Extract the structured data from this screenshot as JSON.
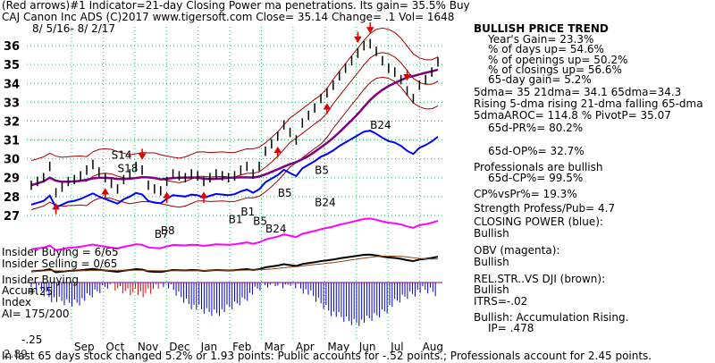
{
  "header": {
    "line1": "(Red arrows)#1 Indicator=21-day Closing Power ma penetrations. Its gain= 35.5% Buy",
    "line2": "CAJ  Canon Inc ADS  (C)2017 www.tigersoft.com    Close=  35.14  Change= .1  Vol= 1648",
    "date_range": "8/ 5/16- 8/ 2/17"
  },
  "colors": {
    "price": "#000000",
    "ma21": "#a00000",
    "ma65": "#800080",
    "closing_power": "#0000ff",
    "obv": "#ff00ff",
    "relative_strength": "#8b4513",
    "accumulation": "#0000c0",
    "distribution": "#d00000",
    "arrows": "#e00000",
    "grid": "#3cb371"
  },
  "chart_data": {
    "type": "line",
    "title": "",
    "ylim": [
      26,
      37
    ],
    "yticks": [
      27,
      28,
      29,
      30,
      31,
      32,
      33,
      34,
      35,
      36
    ],
    "months": [
      "Sep",
      "Oct",
      "Nov",
      "Dec",
      "Jan",
      "Feb",
      "Mar",
      "Apr",
      "May",
      "Jun",
      "Jul",
      "Aug"
    ],
    "price_close": [
      28.6,
      28.8,
      29.0,
      29.6,
      28.2,
      28.5,
      28.8,
      28.9,
      29.1,
      29.4,
      29.7,
      29.3,
      29.0,
      28.7,
      28.4,
      28.9,
      29.2,
      29.6,
      29.4,
      28.6,
      28.4,
      28.3,
      28.8,
      29.2,
      29.1,
      29.0,
      29.2,
      29.1,
      28.8,
      29.0,
      29.2,
      29.1,
      29.0,
      29.1,
      29.4,
      29.6,
      29.2,
      29.6,
      30.4,
      30.8,
      31.2,
      31.8,
      31.4,
      31.0,
      31.9,
      32.3,
      32.7,
      33.2,
      33.5,
      33.9,
      34.4,
      34.8,
      35.2,
      35.6,
      36.0,
      36.1,
      35.7,
      35.2,
      34.8,
      34.6,
      34.2,
      33.6,
      33.2,
      33.9,
      34.2,
      34.6,
      35.14
    ],
    "annotations": [
      "S14",
      "S18",
      "B24",
      "B5",
      "B5",
      "B5",
      "B7",
      "B8",
      "B1",
      "B1",
      "B24",
      "B24"
    ],
    "insider": {
      "buying": "Insider Buying = 6/65",
      "selling": "Insider Selling = 0/65"
    },
    "accum_panel": {
      "label1": "Insider Buying",
      "label2": "Accum",
      "label3": "Index",
      "ai_label": "AI= 175/200",
      "top_tick": "+.25",
      "bottom_tick": "-.25"
    }
  },
  "panel": {
    "trend_title": "BULLISH PRICE TREND",
    "years_gain": "Year's Gain= 23.3%",
    "days_up": "% of days up= 54.6%",
    "openings_up": "% of openings up= 50.2%",
    "closings_up": "% of closings up= 56.6%",
    "gain_65d": "65-day gain= 5.2%",
    "dma": "5dma= 35 21dma= 34.1 65dma=34.3",
    "rising": "Rising 5-dma rising 21-dma falling 65-dma",
    "aroc": "5dmaAROC= 114.8 %  PivotP= 35.07",
    "pr": "65d-PR%= 80.2%",
    "op": "65d-OP%= 32.7%",
    "pros": "Professionals are bullish",
    "cp": "65d-CP%= 99.5%",
    "cpvspr": "CP%vsPr%=  19.3%",
    "strength": "Strength Profess/Pub= 4.7",
    "closing_power_label": "CLOSING POWER (blue):",
    "closing_power_value": "Bullish",
    "obv_label": "OBV (magenta):",
    "obv_value": "Bullish",
    "relstr_label": "REL.STR..VS DJI (brown):",
    "relstr_value": "Bullish",
    "itrs": "ITRS=-.02",
    "accum": "Bullish: Accumulation Rising.",
    "ip": "IP=  .478"
  },
  "footer": {
    "line": "In last 65 days stock changed  5.2% or  1.93 points:  Public accounts for -.52 points.;  Professionals account for  2.45 points.",
    "overlay": "2.89"
  }
}
